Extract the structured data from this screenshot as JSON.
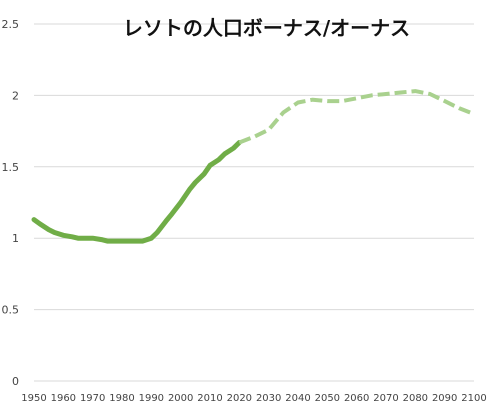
{
  "chart_data": {
    "type": "line",
    "title": "レソトの人口ボーナス/オーナス",
    "xlabel": "",
    "ylabel": "",
    "xlim": [
      1950,
      2100
    ],
    "ylim": [
      0,
      2.5
    ],
    "y_ticks": [
      "0",
      "0.5",
      "1",
      "1.5",
      "2",
      "2.5"
    ],
    "x_ticks": [
      "1950",
      "1960",
      "1970",
      "1980",
      "1990",
      "2000",
      "2010",
      "2020",
      "2030",
      "2040",
      "2050",
      "2060",
      "2070",
      "2080",
      "2090",
      "2100"
    ],
    "grid": true,
    "legend": "none",
    "colors": {
      "series": "#70ad47",
      "projection": "#a9d18e",
      "grid": "#d9d9d9",
      "axis_text": "#444444"
    },
    "series": [
      {
        "style": "solid",
        "x": [
          1950,
          1952,
          1955,
          1957,
          1960,
          1963,
          1965,
          1968,
          1970,
          1973,
          1975,
          1978,
          1980,
          1983,
          1985,
          1987,
          1990,
          1992,
          1995,
          1997,
          2000,
          2003,
          2005,
          2008,
          2010,
          2013,
          2015,
          2018,
          2020
        ],
        "y": [
          1.13,
          1.1,
          1.06,
          1.04,
          1.02,
          1.01,
          1.0,
          1.0,
          1.0,
          0.99,
          0.98,
          0.98,
          0.98,
          0.98,
          0.98,
          0.98,
          1.0,
          1.04,
          1.12,
          1.17,
          1.25,
          1.34,
          1.39,
          1.45,
          1.51,
          1.55,
          1.59,
          1.63,
          1.67
        ]
      },
      {
        "style": "dashed",
        "x": [
          2020,
          2025,
          2030,
          2035,
          2040,
          2045,
          2050,
          2055,
          2060,
          2065,
          2070,
          2075,
          2080,
          2085,
          2090,
          2095,
          2100
        ],
        "y": [
          1.67,
          1.71,
          1.76,
          1.88,
          1.95,
          1.97,
          1.96,
          1.96,
          1.98,
          2.0,
          2.01,
          2.02,
          2.03,
          2.01,
          1.96,
          1.91,
          1.87
        ]
      }
    ]
  }
}
